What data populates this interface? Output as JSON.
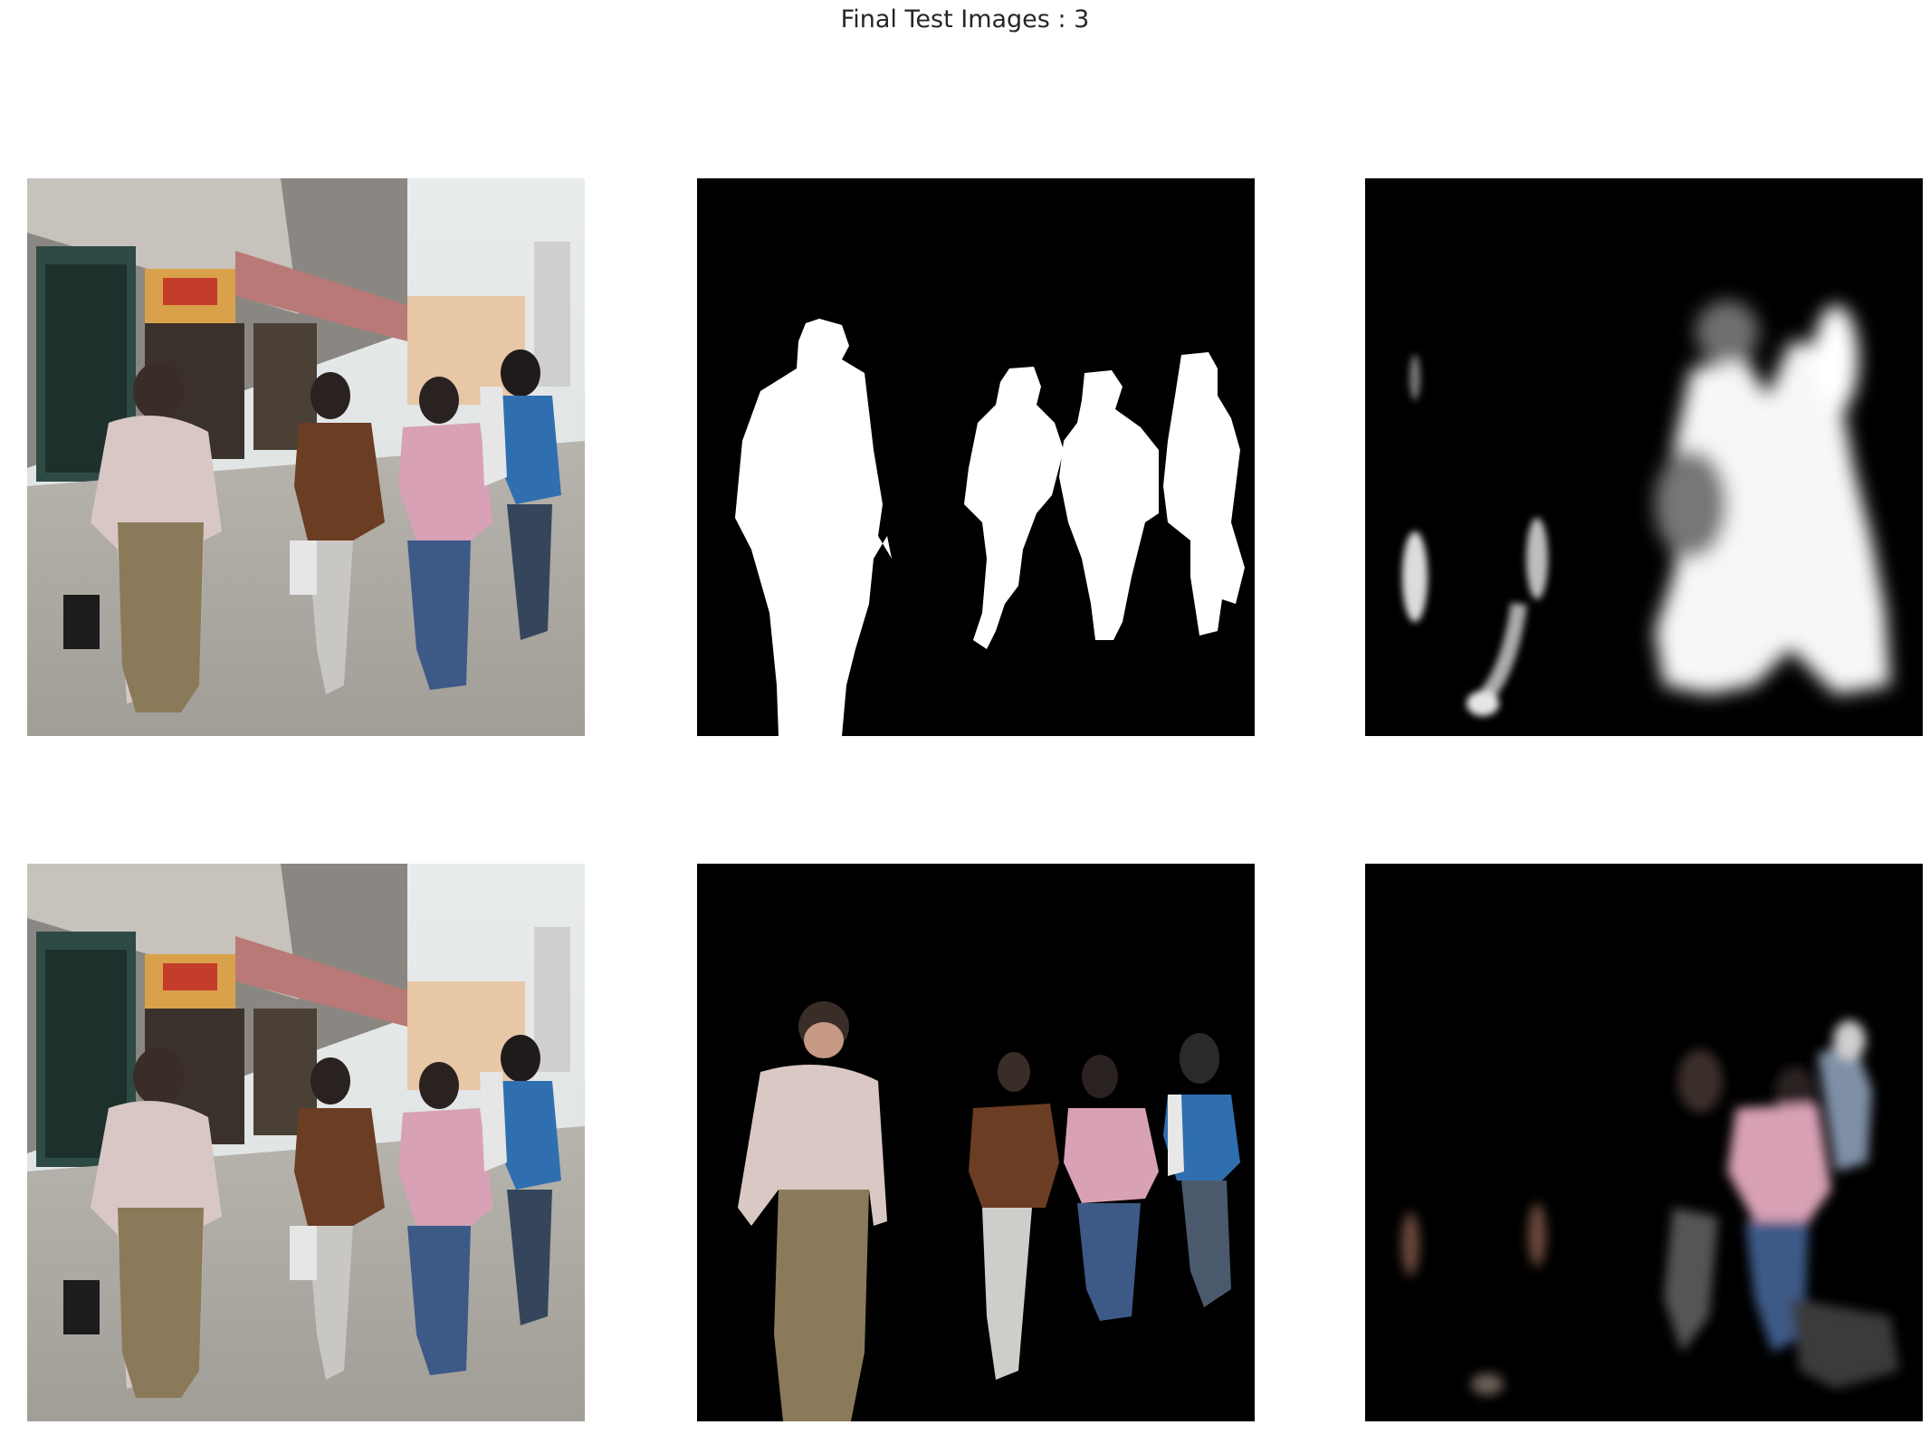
{
  "figure": {
    "title": "Final Test Images : 3"
  },
  "panels": [
    {
      "row": 1,
      "col": 1,
      "name": "input-photo",
      "kind": "photo"
    },
    {
      "row": 1,
      "col": 2,
      "name": "ground-truth-mask",
      "kind": "binary-mask"
    },
    {
      "row": 1,
      "col": 3,
      "name": "predicted-mask",
      "kind": "soft-mask"
    },
    {
      "row": 2,
      "col": 1,
      "name": "input-photo-copy",
      "kind": "photo"
    },
    {
      "row": 2,
      "col": 2,
      "name": "ground-truth-overlay",
      "kind": "masked-photo"
    },
    {
      "row": 2,
      "col": 3,
      "name": "predicted-overlay",
      "kind": "masked-photo"
    }
  ],
  "colors": {
    "background": "#ffffff",
    "mask_background": "#000000",
    "mask_foreground": "#ffffff"
  }
}
